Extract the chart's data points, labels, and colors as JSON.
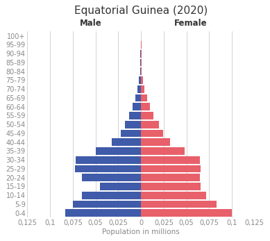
{
  "title": "Equatorial Guinea (2020)",
  "xlabel": "Population in millions",
  "male_label": "Male",
  "female_label": "Female",
  "age_groups": [
    "0-4",
    "5-9",
    "10-14",
    "15-19",
    "20-24",
    "25-29",
    "30-34",
    "35-39",
    "40-44",
    "45-49",
    "50-54",
    "55-59",
    "60-64",
    "65-69",
    "70-74",
    "75-79",
    "80-84",
    "85-89",
    "90-94",
    "95-99",
    "100+"
  ],
  "male_values": [
    0.083,
    0.075,
    0.065,
    0.045,
    0.065,
    0.073,
    0.072,
    0.05,
    0.032,
    0.022,
    0.018,
    0.013,
    0.009,
    0.006,
    0.004,
    0.002,
    0.001,
    0.0007,
    0.0005,
    0.0003,
    0.0001
  ],
  "female_values": [
    0.1,
    0.083,
    0.072,
    0.066,
    0.065,
    0.066,
    0.065,
    0.048,
    0.032,
    0.024,
    0.02,
    0.014,
    0.01,
    0.007,
    0.004,
    0.002,
    0.001,
    0.0009,
    0.0006,
    0.0004,
    0.0002
  ],
  "male_color": "#3F5BA9",
  "female_color": "#E8606A",
  "xlim": 0.125,
  "xtick_positions": [
    -0.125,
    -0.1,
    -0.075,
    -0.05,
    -0.025,
    0,
    0.025,
    0.05,
    0.075,
    0.1,
    0.125
  ],
  "xtick_labels": [
    "0,125",
    "0,1",
    "0,075",
    "0,05",
    "0,025",
    "0",
    "0,025",
    "0,05",
    "0,075",
    "0,1",
    "0,125"
  ],
  "background_color": "#ffffff",
  "grid_color": "#cccccc",
  "title_fontsize": 11,
  "label_fontsize": 7,
  "bar_height": 0.85
}
